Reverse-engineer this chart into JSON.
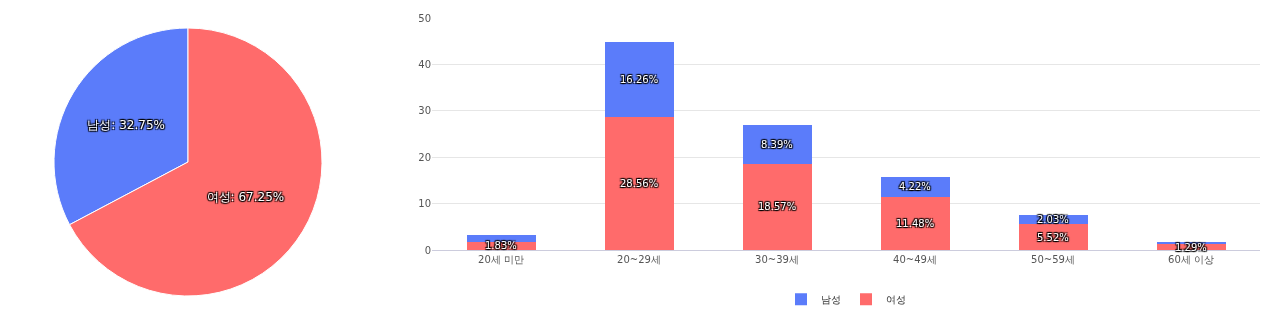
{
  "chart_data": [
    {
      "type": "pie",
      "categories": [
        "남성",
        "여성"
      ],
      "values": [
        32.75,
        67.25
      ],
      "colors": [
        "#5b7cfa",
        "#ff6b6b"
      ],
      "value_labels": [
        ": 32.75%",
        ": 67.25%"
      ],
      "legend": false
    },
    {
      "type": "bar",
      "stacked": true,
      "categories": [
        "20세 미만",
        "20~29세",
        "30~39세",
        "40~49세",
        "50~59세",
        "60세 이상"
      ],
      "series": [
        {
          "name": "여성",
          "color": "#ff6b6b",
          "values": [
            1.83,
            28.56,
            18.57,
            11.48,
            5.52,
            1.29
          ],
          "value_labels": [
            "1.83%",
            "28.56%",
            "18.57%",
            "11.48%",
            "5.52%",
            "1.29%"
          ]
        },
        {
          "name": "남성",
          "color": "#5b7cfa",
          "values": [
            1.3,
            16.26,
            8.39,
            4.22,
            2.03,
            0.5
          ],
          "value_labels": [
            null,
            "16.26%",
            "8.39%",
            "4.22%",
            "2.03%",
            null
          ]
        }
      ],
      "ylim": [
        0,
        50
      ],
      "yticks": [
        0,
        10,
        20,
        30,
        40,
        50
      ],
      "grid": "y",
      "legend": "bottom"
    }
  ]
}
